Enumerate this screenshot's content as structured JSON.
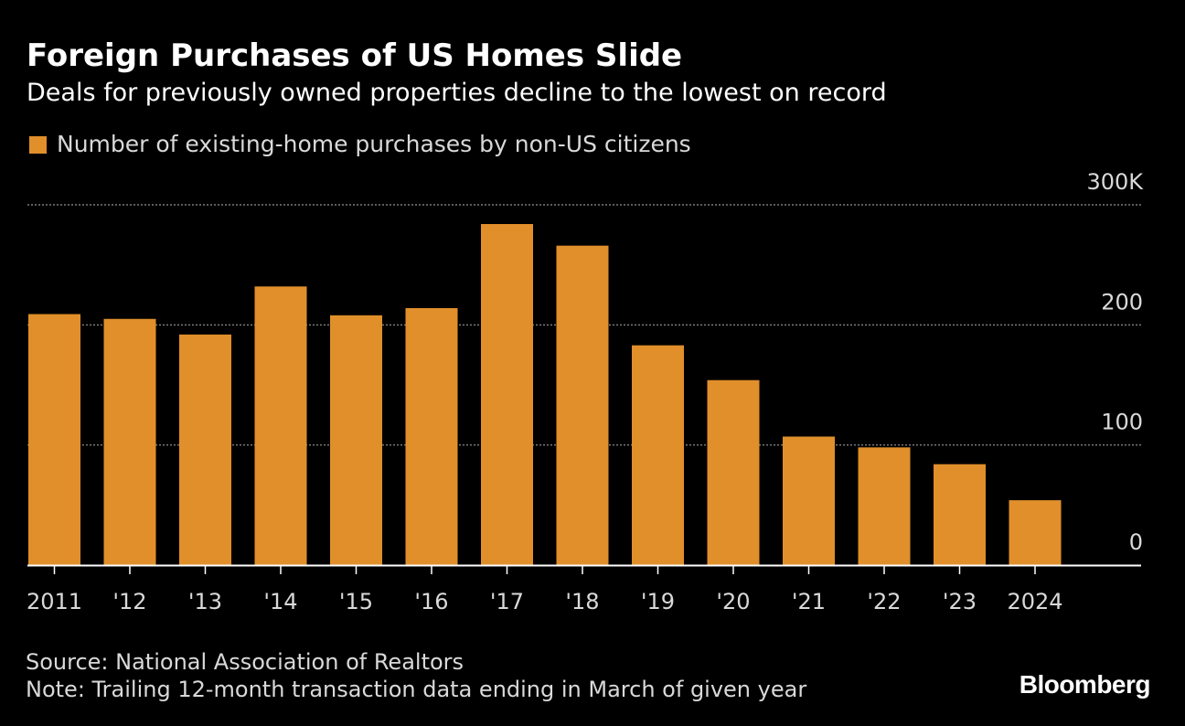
{
  "title": "Foreign Purchases of US Homes Slide",
  "subtitle": "Deals for previously owned properties decline to the lowest on record",
  "legend": {
    "label": "Number of existing-home purchases by non-US citizens",
    "color": "#e08f2a"
  },
  "footer": {
    "source": "Source: National Association of Realtors",
    "note": "Note: Trailing 12-month transaction data ending in March of given year",
    "brand": "Bloomberg"
  },
  "chart_data": {
    "type": "bar",
    "title": "Foreign Purchases of US Homes Slide",
    "xlabel": "",
    "ylabel": "",
    "categories": [
      "2011",
      "'12",
      "'13",
      "'14",
      "'15",
      "'16",
      "'17",
      "'18",
      "'19",
      "'20",
      "'21",
      "'22",
      "'23",
      "2024"
    ],
    "series": [
      {
        "name": "Number of existing-home purchases by non-US citizens",
        "color": "#e08f2a",
        "values": [
          209,
          205,
          192,
          232,
          208,
          214,
          284,
          266,
          183,
          154,
          107,
          98,
          84,
          54
        ]
      }
    ],
    "unit": "thousands",
    "ylim": [
      0,
      300
    ],
    "yticks": [
      {
        "value": 0,
        "label": "0"
      },
      {
        "value": 100,
        "label": "100"
      },
      {
        "value": 200,
        "label": "200"
      },
      {
        "value": 300,
        "label": "300K"
      }
    ],
    "grid": true,
    "gridline_color": "#7a7a7a",
    "axis_color": "#ffffff",
    "tick_label_color": "#d9d9d9",
    "legend_position": "top-left"
  }
}
